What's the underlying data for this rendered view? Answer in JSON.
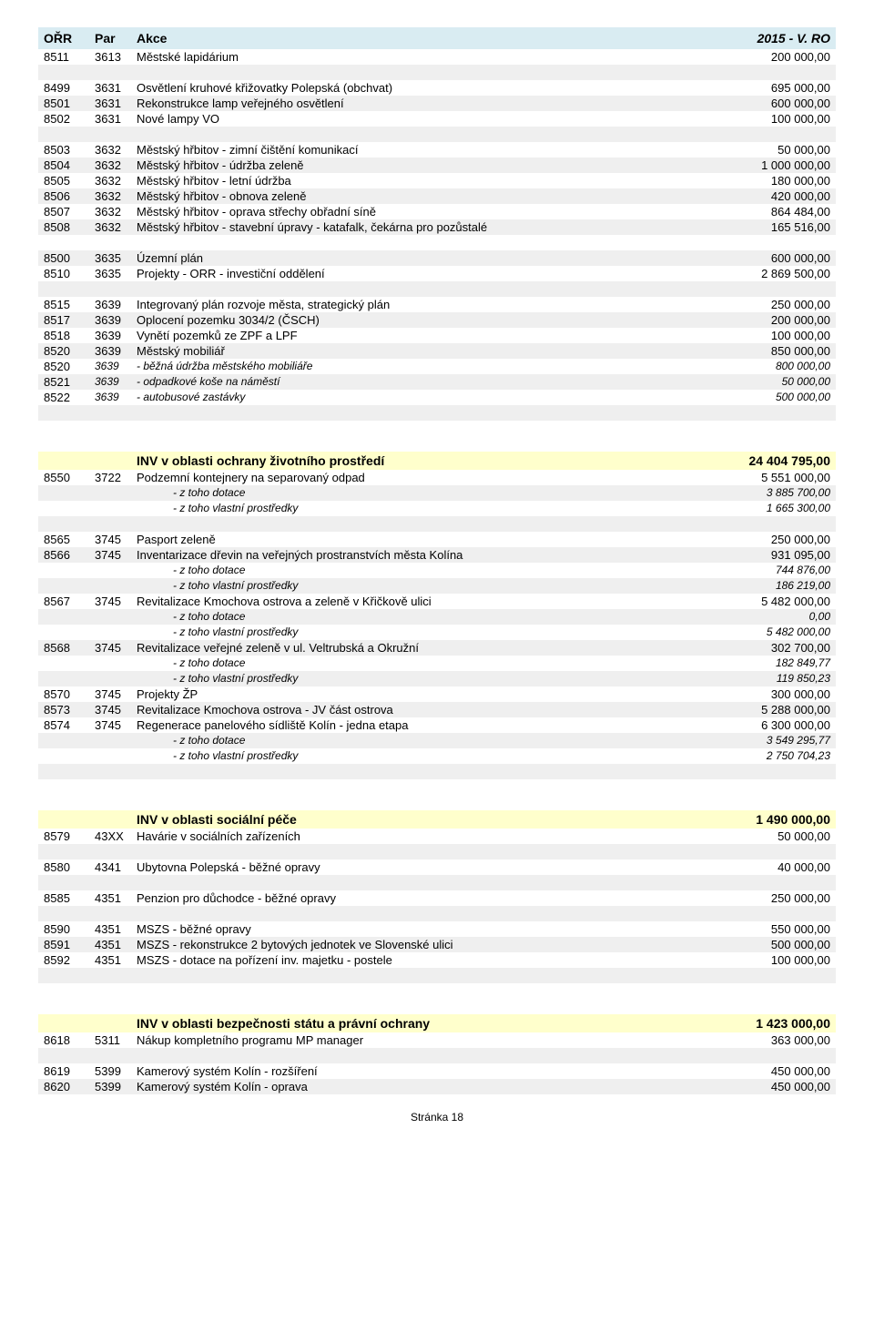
{
  "header": {
    "orr": "OŘR",
    "par": "Par",
    "akce": "Akce",
    "val": "2015 - V. RO"
  },
  "rows1": [
    {
      "c1": "8511",
      "c2": "3613",
      "c3": "Městské lapidárium",
      "c4": "200 000,00",
      "gray": false
    }
  ],
  "rows2": [
    {
      "c1": "8499",
      "c2": "3631",
      "c3": "Osvětlení kruhové křižovatky Polepská (obchvat)",
      "c4": "695 000,00",
      "gray": false
    },
    {
      "c1": "8501",
      "c2": "3631",
      "c3": "Rekonstrukce lamp veřejného osvětlení",
      "c4": "600 000,00",
      "gray": true
    },
    {
      "c1": "8502",
      "c2": "3631",
      "c3": "Nové lampy VO",
      "c4": "100 000,00",
      "gray": false
    }
  ],
  "rows3": [
    {
      "c1": "8503",
      "c2": "3632",
      "c3": "Městský hřbitov - zimní čištění komunikací",
      "c4": "50 000,00",
      "gray": false
    },
    {
      "c1": "8504",
      "c2": "3632",
      "c3": "Městský hřbitov - údržba zeleně",
      "c4": "1 000 000,00",
      "gray": true
    },
    {
      "c1": "8505",
      "c2": "3632",
      "c3": "Městský hřbitov - letní údržba",
      "c4": "180 000,00",
      "gray": false
    },
    {
      "c1": "8506",
      "c2": "3632",
      "c3": "Městský hřbitov - obnova zeleně",
      "c4": "420 000,00",
      "gray": true
    },
    {
      "c1": "8507",
      "c2": "3632",
      "c3": "Městský hřbitov - oprava střechy obřadní síně",
      "c4": "864 484,00",
      "gray": false
    },
    {
      "c1": "8508",
      "c2": "3632",
      "c3": "Městský hřbitov - stavební úpravy - katafalk, čekárna pro pozůstalé",
      "c4": "165 516,00",
      "gray": true
    }
  ],
  "rows4": [
    {
      "c1": "8500",
      "c2": "3635",
      "c3": "Územní plán",
      "c4": "600 000,00",
      "gray": true
    },
    {
      "c1": "8510",
      "c2": "3635",
      "c3": "Projekty - ORR - investiční oddělení",
      "c4": "2 869 500,00",
      "gray": false
    }
  ],
  "rows5": [
    {
      "c1": "8515",
      "c2": "3639",
      "c3": "Integrovaný plán rozvoje města, strategický plán",
      "c4": "250 000,00",
      "gray": false
    },
    {
      "c1": "8517",
      "c2": "3639",
      "c3": "Oplocení pozemku 3034/2 (ČSCH)",
      "c4": "200 000,00",
      "gray": true
    },
    {
      "c1": "8518",
      "c2": "3639",
      "c3": "Vynětí pozemků ze ZPF a LPF",
      "c4": "100 000,00",
      "gray": false
    },
    {
      "c1": "8520",
      "c2": "3639",
      "c3": "Městský mobiliář",
      "c4": "850 000,00",
      "gray": true
    }
  ],
  "rows5sub": [
    {
      "c1": "8520",
      "c2": "3639",
      "c3": "- běžná údržba městského mobiliáře",
      "c4": "800 000,00",
      "gray": false
    },
    {
      "c1": "8521",
      "c2": "3639",
      "c3": "- odpadkové koše na náměstí",
      "c4": "50 000,00",
      "gray": true
    },
    {
      "c1": "8522",
      "c2": "3639",
      "c3": "- autobusové zastávky",
      "c4": "500 000,00",
      "gray": false
    }
  ],
  "section_env": {
    "title": "INV v oblasti ochrany životního prostředí",
    "val": "24 404 795,00"
  },
  "rows_env1": [
    {
      "c1": "8550",
      "c2": "3722",
      "c3": "Podzemní kontejnery na separovaný odpad",
      "c4": "5 551 000,00",
      "gray": false
    }
  ],
  "rows_env1sub": [
    {
      "c3": "- z toho dotace",
      "c4": "3 885 700,00",
      "gray": true
    },
    {
      "c3": "- z toho vlastní prostředky",
      "c4": "1 665 300,00",
      "gray": false
    }
  ],
  "rows_env2": [
    {
      "c1": "8565",
      "c2": "3745",
      "c3": "Pasport zeleně",
      "c4": "250 000,00",
      "gray": false
    },
    {
      "c1": "8566",
      "c2": "3745",
      "c3": "Inventarizace dřevin na veřejných prostranstvích města Kolína",
      "c4": "931 095,00",
      "gray": true
    }
  ],
  "rows_env2sub1": [
    {
      "c3": "- z toho dotace",
      "c4": "744 876,00",
      "gray": false
    },
    {
      "c3": "- z toho vlastní prostředky",
      "c4": "186 219,00",
      "gray": true
    }
  ],
  "rows_env3": [
    {
      "c1": "8567",
      "c2": "3745",
      "c3": "Revitalizace Kmochova ostrova a zeleně v Křičkově ulici",
      "c4": "5 482 000,00",
      "gray": false
    }
  ],
  "rows_env3sub": [
    {
      "c3": "- z toho dotace",
      "c4": "0,00",
      "gray": true
    },
    {
      "c3": "- z toho vlastní prostředky",
      "c4": "5 482 000,00",
      "gray": false
    }
  ],
  "rows_env4": [
    {
      "c1": "8568",
      "c2": "3745",
      "c3": "Revitalizace veřejné zeleně v ul. Veltrubská a Okružní",
      "c4": "302 700,00",
      "gray": true
    }
  ],
  "rows_env4sub": [
    {
      "c3": "- z toho dotace",
      "c4": "182 849,77",
      "gray": false
    },
    {
      "c3": "- z toho vlastní prostředky",
      "c4": "119 850,23",
      "gray": true
    }
  ],
  "rows_env5": [
    {
      "c1": "8570",
      "c2": "3745",
      "c3": "Projekty ŽP",
      "c4": "300 000,00",
      "gray": false
    },
    {
      "c1": "8573",
      "c2": "3745",
      "c3": "Revitalizace Kmochova ostrova - JV část ostrova",
      "c4": "5 288 000,00",
      "gray": true
    },
    {
      "c1": "8574",
      "c2": "3745",
      "c3": "Regenerace panelového sídliště Kolín - jedna etapa",
      "c4": "6 300 000,00",
      "gray": false
    }
  ],
  "rows_env5sub": [
    {
      "c3": "- z toho dotace",
      "c4": "3 549 295,77",
      "gray": true
    },
    {
      "c3": "- z toho vlastní prostředky",
      "c4": "2 750 704,23",
      "gray": false
    }
  ],
  "section_soc": {
    "title": "INV v oblasti sociální péče",
    "val": "1 490 000,00"
  },
  "rows_soc": [
    {
      "c1": "8579",
      "c2": "43XX",
      "c3": "Havárie v sociálních zařízeních",
      "c4": "50 000,00",
      "gray": false
    }
  ],
  "rows_soc2": [
    {
      "c1": "8580",
      "c2": "4341",
      "c3": "Ubytovna Polepská - běžné opravy",
      "c4": "40 000,00",
      "gray": false
    }
  ],
  "rows_soc3": [
    {
      "c1": "8585",
      "c2": "4351",
      "c3": "Penzion pro důchodce - běžné opravy",
      "c4": "250 000,00",
      "gray": false
    }
  ],
  "rows_soc4": [
    {
      "c1": "8590",
      "c2": "4351",
      "c3": "MSZS - běžné opravy",
      "c4": "550 000,00",
      "gray": false
    },
    {
      "c1": "8591",
      "c2": "4351",
      "c3": "MSZS - rekonstrukce 2 bytových jednotek ve Slovenské ulici",
      "c4": "500 000,00",
      "gray": true
    },
    {
      "c1": "8592",
      "c2": "4351",
      "c3": "MSZS - dotace na pořízení inv. majetku - postele",
      "c4": "100 000,00",
      "gray": false
    }
  ],
  "section_sec": {
    "title": "INV v oblasti bezpečnosti státu a právní ochrany",
    "val": "1 423 000,00"
  },
  "rows_sec1": [
    {
      "c1": "8618",
      "c2": "5311",
      "c3": "Nákup kompletního programu MP manager",
      "c4": "363 000,00",
      "gray": false
    }
  ],
  "rows_sec2": [
    {
      "c1": "8619",
      "c2": "5399",
      "c3": "Kamerový systém Kolín - rozšíření",
      "c4": "450 000,00",
      "gray": false
    },
    {
      "c1": "8620",
      "c2": "5399",
      "c3": "Kamerový systém Kolín - oprava",
      "c4": "450 000,00",
      "gray": true
    }
  ],
  "footer": "Stránka 18"
}
